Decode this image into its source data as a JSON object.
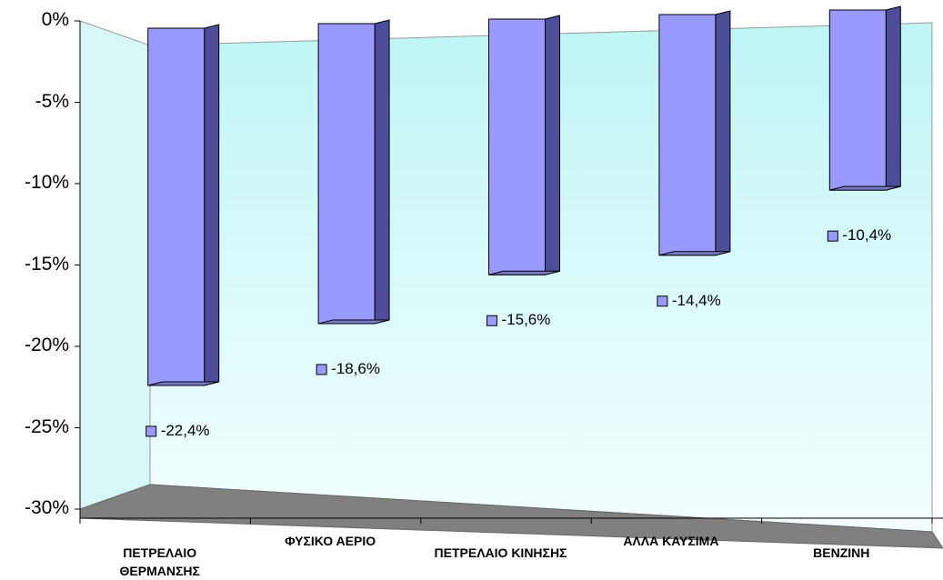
{
  "chart_data": {
    "type": "bar",
    "categories": [
      "ΠΕΤΡΕΛΑΙΟ ΘΕΡΜΑΝΣΗΣ",
      "ΦΥΣΙΚΟ ΑΕΡΙΟ",
      "ΠΕΤΡΕΛΑΙΟ ΚΙΝΗΣΗΣ",
      "ΑΛΛΑ ΚΑΥΣΙΜΑ",
      "ΒΕΝΖΙΝΗ"
    ],
    "values": [
      -22.4,
      -18.6,
      -15.6,
      -14.4,
      -10.4
    ],
    "value_labels": [
      "-22,4%",
      "-18,6%",
      "-15,6%",
      "-14,4%",
      "-10,4%"
    ],
    "color": "#9999ff",
    "ylim": [
      -30,
      0
    ],
    "yticks": [
      {
        "value": 0,
        "label": "0%"
      },
      {
        "value": -5,
        "label": "-5%"
      },
      {
        "value": -10,
        "label": "-10%"
      },
      {
        "value": -15,
        "label": "-15%"
      },
      {
        "value": -20,
        "label": "-20%"
      },
      {
        "value": -25,
        "label": "-25%"
      },
      {
        "value": -30,
        "label": "-30%"
      }
    ]
  }
}
